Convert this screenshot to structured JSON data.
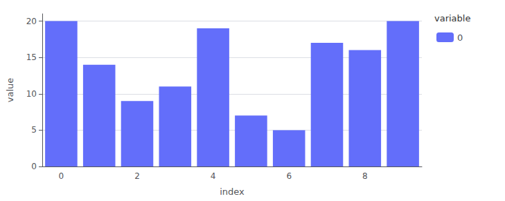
{
  "chart_data": {
    "type": "bar",
    "categories": [
      "0",
      null,
      "2",
      null,
      "4",
      null,
      "6",
      null,
      "8",
      null
    ],
    "series": [
      {
        "name": "0",
        "color": "#636EFA",
        "values": [
          20,
          14,
          9,
          11,
          19,
          7,
          5,
          17,
          16,
          20
        ]
      }
    ],
    "x_label": "index",
    "y_label": "value",
    "legend_title": "variable",
    "legend": "upper right",
    "ylim": [
      0,
      21
    ],
    "yticks": [
      0,
      5,
      10,
      15,
      20
    ],
    "grid": true
  }
}
